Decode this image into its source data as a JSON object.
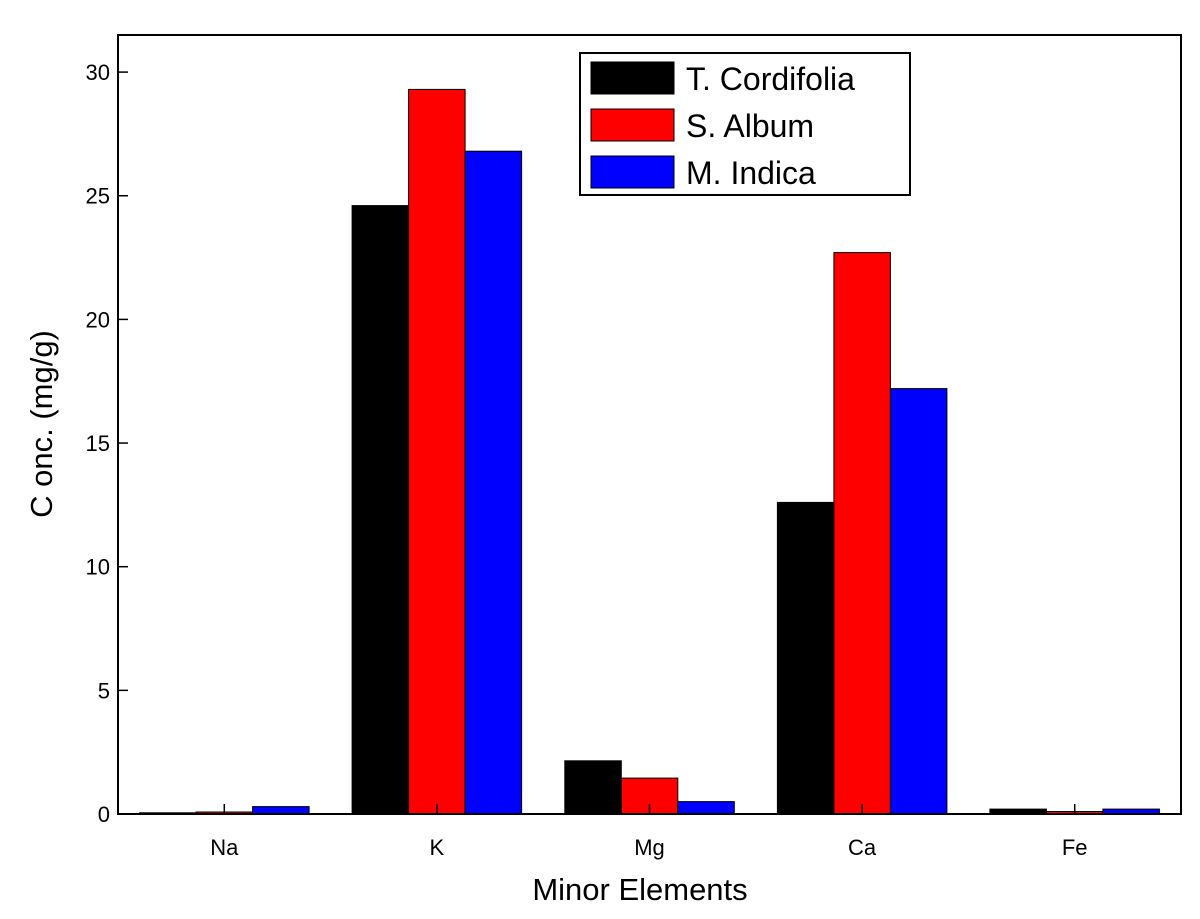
{
  "chart_data": {
    "type": "bar",
    "title": "",
    "xlabel": "Minor Elements",
    "ylabel": "C onc. (mg/g)",
    "categories": [
      "Na",
      "K",
      "Mg",
      "Ca",
      "Fe"
    ],
    "series": [
      {
        "name": "T. Cordifolia",
        "color": "#000000",
        "values": [
          0.05,
          24.6,
          2.15,
          12.6,
          0.2
        ]
      },
      {
        "name": "S. Album",
        "color": "#ff0000",
        "values": [
          0.08,
          29.3,
          1.45,
          22.7,
          0.1
        ]
      },
      {
        "name": "M. Indica",
        "color": "#0000ff",
        "values": [
          0.3,
          26.8,
          0.5,
          17.2,
          0.2
        ]
      }
    ],
    "ylim": [
      0,
      31.5
    ],
    "yticks": [
      0,
      5,
      10,
      15,
      20,
      25,
      30
    ],
    "grid": false,
    "legend_position": "top-right"
  }
}
